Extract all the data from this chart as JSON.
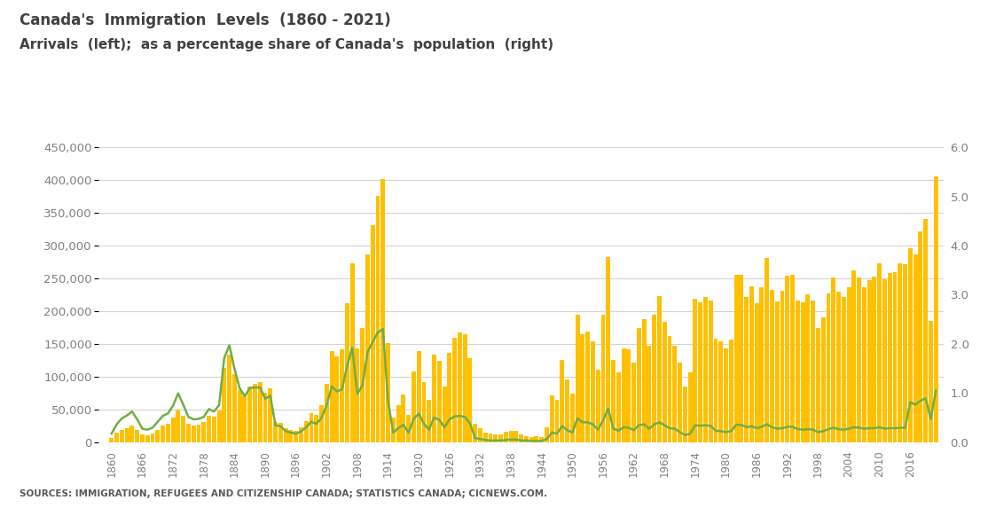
{
  "title_line1": "Canada's  Immigration  Levels  (1860 - 2021)",
  "title_line2": "Arrivals  (left);  as a percentage share of Canada's  population  (right)",
  "source_text": "SOURCES: IMMIGRATION, REFUGEES AND CITIZENSHIP CANADA; STATISTICS CANADA; CICNEWS.COM.",
  "years": [
    1860,
    1861,
    1862,
    1863,
    1864,
    1865,
    1866,
    1867,
    1868,
    1869,
    1870,
    1871,
    1872,
    1873,
    1874,
    1875,
    1876,
    1877,
    1878,
    1879,
    1880,
    1881,
    1882,
    1883,
    1884,
    1885,
    1886,
    1887,
    1888,
    1889,
    1890,
    1891,
    1892,
    1893,
    1894,
    1895,
    1896,
    1897,
    1898,
    1899,
    1900,
    1901,
    1902,
    1903,
    1904,
    1905,
    1906,
    1907,
    1908,
    1909,
    1910,
    1911,
    1912,
    1913,
    1914,
    1915,
    1916,
    1917,
    1918,
    1919,
    1920,
    1921,
    1922,
    1923,
    1924,
    1925,
    1926,
    1927,
    1928,
    1929,
    1930,
    1931,
    1932,
    1933,
    1934,
    1935,
    1936,
    1937,
    1938,
    1939,
    1940,
    1941,
    1942,
    1943,
    1944,
    1945,
    1946,
    1947,
    1948,
    1949,
    1950,
    1951,
    1952,
    1953,
    1954,
    1955,
    1956,
    1957,
    1958,
    1959,
    1960,
    1961,
    1962,
    1963,
    1964,
    1965,
    1966,
    1967,
    1968,
    1969,
    1970,
    1971,
    1972,
    1973,
    1974,
    1975,
    1976,
    1977,
    1978,
    1979,
    1980,
    1981,
    1982,
    1983,
    1984,
    1985,
    1986,
    1987,
    1988,
    1989,
    1990,
    1991,
    1992,
    1993,
    1994,
    1995,
    1996,
    1997,
    1998,
    1999,
    2000,
    2001,
    2002,
    2003,
    2004,
    2005,
    2006,
    2007,
    2008,
    2009,
    2010,
    2011,
    2012,
    2013,
    2014,
    2015,
    2016,
    2017,
    2018,
    2019,
    2020,
    2021
  ],
  "arrivals": [
    6276,
    13589,
    18294,
    21000,
    24779,
    18958,
    11427,
    10666,
    12765,
    18630,
    24706,
    27773,
    36578,
    50050,
    39373,
    27382,
    25633,
    27082,
    29807,
    40492,
    38505,
    47991,
    112458,
    133624,
    103824,
    79169,
    69152,
    84526,
    88766,
    91600,
    75067,
    82165,
    30996,
    29633,
    20829,
    18790,
    16835,
    21716,
    31900,
    44543,
    41681,
    55747,
    89102,
    138660,
    131252,
    141465,
    211653,
    272409,
    143326,
    173694,
    286839,
    331288,
    375756,
    400870,
    150484,
    36665,
    55914,
    72910,
    41845,
    107698,
    138824,
    91728,
    64224,
    133729,
    124164,
    84907,
    135982,
    158886,
    166783,
    164993,
    127530,
    27530,
    20591,
    14158,
    12476,
    11277,
    11643,
    15101,
    17244,
    16994,
    11324,
    9329,
    7576,
    8504,
    6976,
    22722,
    71719,
    64127,
    125414,
    95217,
    73912,
    194391,
    164498,
    168868,
    154227,
    109946,
    194391,
    282164,
    124851,
    106928,
    143135,
    141520,
    121147,
    174024,
    187881,
    146758,
    194743,
    222876,
    183974,
    161531,
    147190,
    121147,
    84302,
    105654,
    218465,
    212865,
    221352,
    216022,
    157272,
    153491,
    143135,
    156938,
    254810,
    255910,
    221352,
    238112,
    211653,
    236761,
    280681,
    232802,
    214230,
    230781,
    254377,
    255862,
    215459,
    212865,
    226073,
    216052,
    174161,
    189950,
    227452,
    250640,
    229091,
    221352,
    235824,
    262236,
    251640,
    236754,
    247240,
    252179,
    272707,
    248748,
    257515,
    259003,
    272803,
    271845,
    296346,
    286479,
    321068,
    341180,
    184370,
    405999
  ],
  "pct_share": [
    0.17,
    0.36,
    0.48,
    0.54,
    0.62,
    0.46,
    0.27,
    0.25,
    0.29,
    0.41,
    0.53,
    0.58,
    0.74,
    0.99,
    0.76,
    0.51,
    0.46,
    0.47,
    0.51,
    0.67,
    0.62,
    0.75,
    1.71,
    1.97,
    1.49,
    1.1,
    0.93,
    1.1,
    1.11,
    1.11,
    0.88,
    0.94,
    0.34,
    0.32,
    0.22,
    0.19,
    0.17,
    0.21,
    0.3,
    0.41,
    0.37,
    0.49,
    0.75,
    1.13,
    1.03,
    1.07,
    1.55,
    1.92,
    0.98,
    1.15,
    1.83,
    2.04,
    2.23,
    2.3,
    0.83,
    0.19,
    0.28,
    0.35,
    0.19,
    0.47,
    0.58,
    0.37,
    0.25,
    0.5,
    0.45,
    0.3,
    0.46,
    0.52,
    0.53,
    0.51,
    0.38,
    0.08,
    0.06,
    0.04,
    0.03,
    0.03,
    0.03,
    0.04,
    0.05,
    0.05,
    0.03,
    0.03,
    0.02,
    0.02,
    0.02,
    0.06,
    0.19,
    0.17,
    0.32,
    0.24,
    0.19,
    0.48,
    0.4,
    0.4,
    0.36,
    0.25,
    0.44,
    0.68,
    0.27,
    0.23,
    0.3,
    0.29,
    0.24,
    0.34,
    0.36,
    0.27,
    0.36,
    0.4,
    0.34,
    0.28,
    0.27,
    0.2,
    0.14,
    0.17,
    0.34,
    0.33,
    0.34,
    0.33,
    0.23,
    0.22,
    0.2,
    0.22,
    0.35,
    0.35,
    0.3,
    0.32,
    0.28,
    0.31,
    0.36,
    0.3,
    0.27,
    0.28,
    0.31,
    0.31,
    0.26,
    0.25,
    0.26,
    0.25,
    0.2,
    0.22,
    0.26,
    0.29,
    0.26,
    0.25,
    0.27,
    0.3,
    0.29,
    0.27,
    0.28,
    0.28,
    0.3,
    0.27,
    0.28,
    0.28,
    0.29,
    0.29,
    0.81,
    0.76,
    0.84,
    0.89,
    0.47,
    1.04
  ],
  "bar_color": "#FFC000",
  "line_color": "#70AD47",
  "background_color": "#FFFFFF",
  "ylim_left": [
    0,
    450000
  ],
  "ylim_right": [
    0,
    6.0
  ],
  "yticks_left": [
    0,
    50000,
    100000,
    150000,
    200000,
    250000,
    300000,
    350000,
    400000,
    450000
  ],
  "yticks_right": [
    0.0,
    1.0,
    2.0,
    3.0,
    4.0,
    5.0,
    6.0
  ],
  "grid_color": "#D3D3D3",
  "tick_label_color": "#808080",
  "title_color": "#404040",
  "source_color": "#595959"
}
